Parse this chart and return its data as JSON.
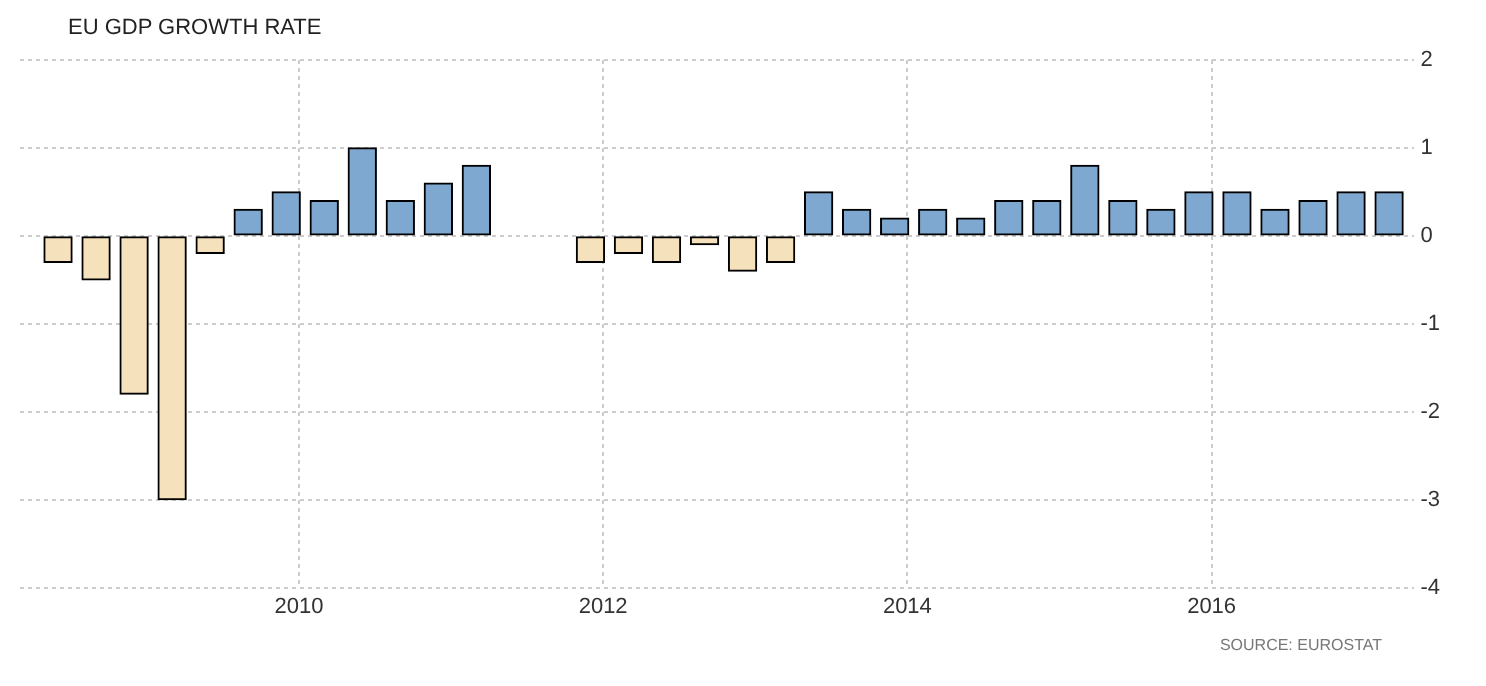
{
  "chart_data": {
    "type": "bar",
    "title": "EU GDP GROWTH RATE",
    "x": [
      "2008-06",
      "2008-09",
      "2008-12",
      "2009-03",
      "2009-06",
      "2009-09",
      "2009-12",
      "2010-03",
      "2010-06",
      "2010-09",
      "2010-12",
      "2011-03",
      "2011-06",
      "2011-09",
      "2011-12",
      "2012-03",
      "2012-06",
      "2012-09",
      "2012-12",
      "2013-03",
      "2013-06",
      "2013-09",
      "2013-12",
      "2014-03",
      "2014-06",
      "2014-09",
      "2014-12",
      "2015-03",
      "2015-06",
      "2015-09",
      "2015-12",
      "2016-03",
      "2016-06",
      "2016-09",
      "2016-12",
      "2017-03"
    ],
    "values": [
      -0.3,
      -0.5,
      -1.8,
      -3.0,
      -0.2,
      0.3,
      0.5,
      0.4,
      1.0,
      0.4,
      0.6,
      0.8,
      null,
      null,
      -0.3,
      -0.2,
      -0.3,
      -0.1,
      -0.4,
      -0.3,
      0.5,
      0.3,
      0.2,
      0.3,
      0.2,
      0.4,
      0.4,
      0.8,
      0.4,
      0.3,
      0.5,
      0.5,
      0.3,
      0.4,
      0.5,
      0.5
    ],
    "colors": [
      "#f6e1bd",
      "#f6e1bd",
      "#f6e1bd",
      "#f6e1bd",
      "#f6e1bd",
      "#7fa8d0",
      "#7fa8d0",
      "#7fa8d0",
      "#7fa8d0",
      "#7fa8d0",
      "#7fa8d0",
      "#7fa8d0",
      "#7fa8d0",
      "#7fa8d0",
      "#f6e1bd",
      "#f6e1bd",
      "#f6e1bd",
      "#f6e1bd",
      "#f6e1bd",
      "#f6e1bd",
      "#7fa8d0",
      "#7fa8d0",
      "#7fa8d0",
      "#7fa8d0",
      "#7fa8d0",
      "#7fa8d0",
      "#7fa8d0",
      "#7fa8d0",
      "#7fa8d0",
      "#7fa8d0",
      "#7fa8d0",
      "#7fa8d0",
      "#7fa8d0",
      "#7fa8d0",
      "#7fa8d0",
      "#7fa8d0"
    ],
    "xlim": [
      "2008-03",
      "2017-05"
    ],
    "xticks": [
      "2010",
      "2012",
      "2014",
      "2016"
    ],
    "ylim": [
      -4,
      2
    ],
    "yticks": [
      -4,
      -3,
      -2,
      -1,
      0,
      1,
      2
    ],
    "grid": true,
    "annotations": [
      "SOURCE: EUROSTAT"
    ]
  }
}
